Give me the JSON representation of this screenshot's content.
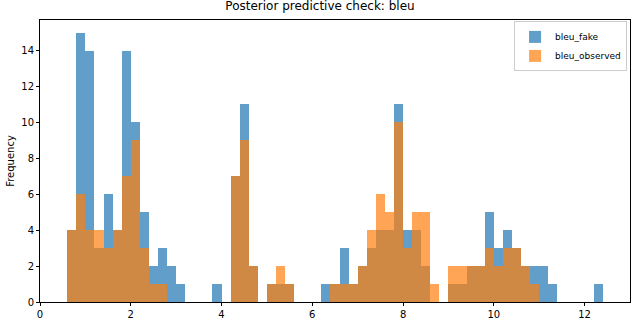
{
  "chart_data": {
    "type": "histogram",
    "title": "Posterior predictive check: bleu",
    "y_label": "Frequency",
    "bins": [
      0.6,
      0.8,
      1.0,
      1.2,
      1.4,
      1.6,
      1.8,
      2.0,
      2.2,
      2.4,
      2.6,
      2.8,
      3.0,
      3.2,
      3.4,
      3.6,
      3.8,
      4.0,
      4.2,
      4.4,
      4.6,
      4.8,
      5.0,
      5.2,
      5.4,
      5.6,
      5.8,
      6.0,
      6.2,
      6.4,
      6.6,
      6.8,
      7.0,
      7.2,
      7.4,
      7.6,
      7.8,
      8.0,
      8.2,
      8.4,
      8.6,
      8.8,
      9.0,
      9.2,
      9.4,
      9.6,
      9.8,
      10.0,
      10.2,
      10.4,
      10.6,
      10.8,
      11.0,
      11.2,
      11.4,
      11.6,
      11.8,
      12.0,
      12.2,
      12.4
    ],
    "series": [
      {
        "name": "bleu_fake",
        "color": "#1f77b4",
        "values": [
          4,
          15,
          14,
          3,
          6,
          4,
          14,
          10,
          5,
          2,
          3,
          2,
          1,
          0,
          0,
          0,
          1,
          0,
          7,
          11,
          2,
          0,
          1,
          1,
          1,
          0,
          0,
          0,
          1,
          1,
          3,
          1,
          2,
          3,
          4,
          4,
          11,
          4,
          4,
          2,
          0,
          0,
          1,
          1,
          2,
          2,
          5,
          3,
          4,
          3,
          2,
          2,
          2,
          1,
          0,
          0,
          0,
          0,
          1
        ]
      },
      {
        "name": "bleu_observed",
        "color": "#ff7f0e",
        "values": [
          4,
          6,
          4,
          4,
          3,
          4,
          7,
          9,
          3,
          1,
          1,
          0,
          0,
          0,
          0,
          0,
          0,
          0,
          7,
          9,
          2,
          0,
          1,
          2,
          1,
          0,
          0,
          0,
          0,
          1,
          1,
          1,
          2,
          4,
          6,
          5,
          10,
          3,
          5,
          5,
          1,
          0,
          2,
          2,
          2,
          2,
          3,
          2,
          3,
          3,
          2,
          1,
          0,
          0,
          0,
          0,
          0,
          0,
          0
        ]
      }
    ],
    "xlim": [
      0,
      13
    ],
    "xticks": [
      0,
      2,
      4,
      6,
      8,
      10,
      12
    ],
    "ylim": [
      0,
      15.7
    ],
    "yticks": [
      0,
      2,
      4,
      6,
      8,
      10,
      12,
      14
    ],
    "grid": false,
    "legend": "top-right"
  }
}
